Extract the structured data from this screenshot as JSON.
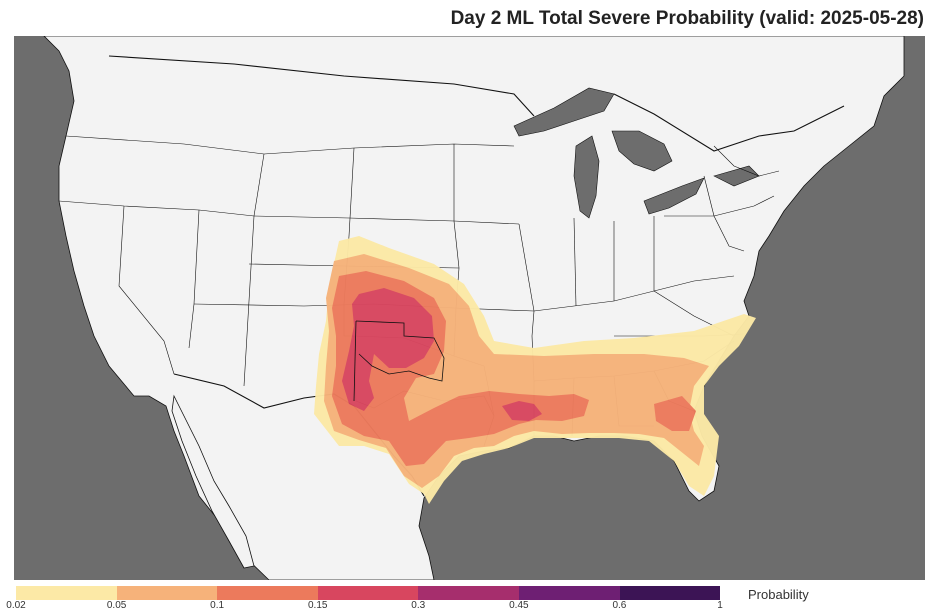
{
  "title": "Day 2 ML Total Severe Probability (valid: 2025-05-28)",
  "colors": {
    "ocean": "#6d6d6d",
    "land": "#f3f3f3",
    "borders": "#111111",
    "levels": [
      "#fce9a6",
      "#f6b27a",
      "#ec7a5c",
      "#d8465f",
      "#a62e6d",
      "#6e1f73",
      "#3c1455"
    ]
  },
  "colorbar": {
    "label": "Probability",
    "ticks": [
      "0.02",
      "0.05",
      "0.1",
      "0.15",
      "0.3",
      "0.45",
      "0.6",
      "1"
    ]
  },
  "map_labels": []
}
